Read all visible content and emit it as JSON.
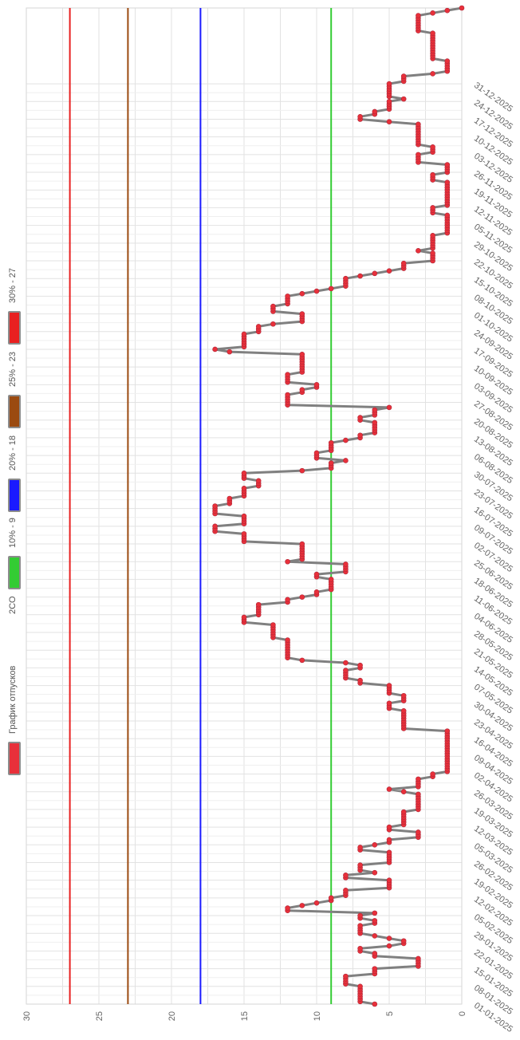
{
  "chart_data": {
    "type": "line",
    "orientation": "rotated-90",
    "title": "",
    "xlabel": "",
    "ylabel": "",
    "ylim": [
      0,
      30
    ],
    "y_ticks": [
      "0",
      "5",
      "10",
      "15",
      "20",
      "25",
      "30"
    ],
    "x_tick_labels": [
      "01-01-2025",
      "08-01-2025",
      "15-01-2025",
      "22-01-2025",
      "29-01-2025",
      "05-02-2025",
      "12-02-2025",
      "19-02-2025",
      "26-02-2025",
      "05-03-2025",
      "12-03-2025",
      "19-03-2025",
      "26-03-2025",
      "02-04-2025",
      "09-04-2025",
      "16-04-2025",
      "23-04-2025",
      "30-04-2025",
      "07-05-2025",
      "14-05-2025",
      "21-05-2025",
      "28-05-2025",
      "04-06-2025",
      "11-06-2025",
      "18-06-2025",
      "25-06-2025",
      "02-07-2025",
      "09-07-2025",
      "16-07-2025",
      "23-07-2025",
      "30-07-2025",
      "06-08-2025",
      "13-08-2025",
      "20-08-2025",
      "27-08-2025",
      "03-09-2025",
      "10-09-2025",
      "17-09-2025",
      "24-09-2025",
      "01-10-2025",
      "08-10-2025",
      "15-10-2025",
      "22-10-2025",
      "29-10-2025",
      "05-11-2025",
      "12-11-2025",
      "19-11-2025",
      "26-11-2025",
      "03-12-2025",
      "10-12-2025",
      "17-12-2025",
      "24-12-2025",
      "31-12-2025"
    ],
    "grid": true,
    "legend_position": "left",
    "series": [
      {
        "name": "График отпусков",
        "color": "#e8303a",
        "line_color": "#808080",
        "x_start": "01-01-2025",
        "x_step_days": 1,
        "values": [
          6,
          7,
          7,
          7,
          7,
          7,
          7,
          7,
          8,
          8,
          8,
          8,
          6,
          6,
          6,
          3,
          3,
          3,
          3,
          6,
          6,
          7,
          7,
          5,
          4,
          4,
          5,
          6,
          7,
          7,
          7,
          7,
          6,
          6,
          7,
          7,
          6,
          12,
          12,
          11,
          10,
          9,
          9,
          8,
          8,
          8,
          5,
          5,
          5,
          5,
          8,
          8,
          6,
          7,
          7,
          7,
          5,
          5,
          5,
          5,
          5,
          7,
          7,
          6,
          5,
          5,
          3,
          3,
          3,
          5,
          5,
          4,
          4,
          4,
          4,
          4,
          4,
          3,
          3,
          3,
          3,
          3,
          3,
          3,
          4,
          5,
          3,
          3,
          3,
          3,
          2,
          2,
          1,
          1,
          1,
          1,
          1,
          1,
          1,
          1,
          1,
          1,
          1,
          1,
          1,
          1,
          1,
          1,
          1,
          4,
          4,
          4,
          4,
          4,
          4,
          4,
          4,
          5,
          5,
          5,
          4,
          4,
          4,
          5,
          5,
          5,
          5,
          7,
          7,
          8,
          8,
          8,
          8,
          7,
          7,
          8,
          11,
          12,
          12,
          12,
          12,
          12,
          12,
          12,
          12,
          13,
          13,
          13,
          13,
          13,
          13,
          15,
          15,
          15,
          14,
          14,
          14,
          14,
          14,
          12,
          12,
          11,
          10,
          10,
          9,
          9,
          9,
          9,
          9,
          10,
          10,
          8,
          8,
          8,
          8,
          12,
          11,
          11,
          11,
          11,
          11,
          11,
          11,
          15,
          15,
          15,
          15,
          17,
          17,
          17,
          15,
          15,
          15,
          15,
          17,
          17,
          17,
          17,
          16,
          16,
          16,
          15,
          15,
          15,
          15,
          14,
          14,
          14,
          15,
          15,
          15,
          11,
          9,
          9,
          9,
          8,
          10,
          10,
          10,
          9,
          9,
          9,
          9,
          8,
          7,
          7,
          6,
          6,
          6,
          6,
          6,
          7,
          7,
          6,
          6,
          6,
          5,
          12,
          12,
          12,
          12,
          12,
          11,
          11,
          10,
          10,
          12,
          12,
          12,
          12,
          11,
          11,
          11,
          11,
          11,
          11,
          11,
          11,
          16,
          17,
          15,
          15,
          15,
          15,
          15,
          15,
          14,
          14,
          14,
          13,
          11,
          11,
          11,
          11,
          13,
          13,
          13,
          12,
          12,
          12,
          12,
          11,
          10,
          9,
          8,
          8,
          8,
          8,
          7,
          6,
          5,
          4,
          4,
          4,
          2,
          2,
          2,
          2,
          3,
          2,
          2,
          2,
          2,
          2,
          2,
          1,
          1,
          1,
          1,
          1,
          1,
          1,
          1,
          2,
          2,
          2,
          1,
          1,
          1,
          1,
          1,
          1,
          1,
          1,
          1,
          1,
          2,
          2,
          2,
          1,
          1,
          1,
          1,
          3,
          3,
          3,
          3,
          2,
          2,
          2,
          3,
          3,
          3,
          3,
          3,
          3,
          3,
          3,
          3,
          5,
          7,
          7,
          6,
          6,
          5,
          5,
          5,
          5,
          4,
          5,
          5,
          5,
          5,
          5,
          5,
          4,
          4,
          4,
          2,
          1,
          1,
          1,
          1,
          1,
          2,
          2,
          2,
          2,
          2,
          2,
          2,
          2,
          2,
          2,
          2,
          3,
          3,
          3,
          3,
          3,
          3,
          3,
          2,
          1,
          0
        ]
      }
    ],
    "reference_lines": [
      {
        "name": "10% - 9",
        "value": 9,
        "color": "#33cc33"
      },
      {
        "name": "20% - 18",
        "value": 18,
        "color": "#1a1aff"
      },
      {
        "name": "25% - 23",
        "value": 23,
        "color": "#9b4a10"
      },
      {
        "name": "30% - 27",
        "value": 27,
        "color": "#e82020"
      }
    ]
  },
  "legend": {
    "items": [
      {
        "label": "График отпусков",
        "color": "#e8303a"
      },
      {
        "label": "2CO",
        "color": null
      },
      {
        "label": "10% - 9",
        "color": "#33cc33"
      },
      {
        "label": "20% - 18",
        "color": "#1a1aff"
      },
      {
        "label": "25% - 23",
        "color": "#9b4a10"
      },
      {
        "label": "30% - 27",
        "color": "#e82020"
      }
    ]
  }
}
